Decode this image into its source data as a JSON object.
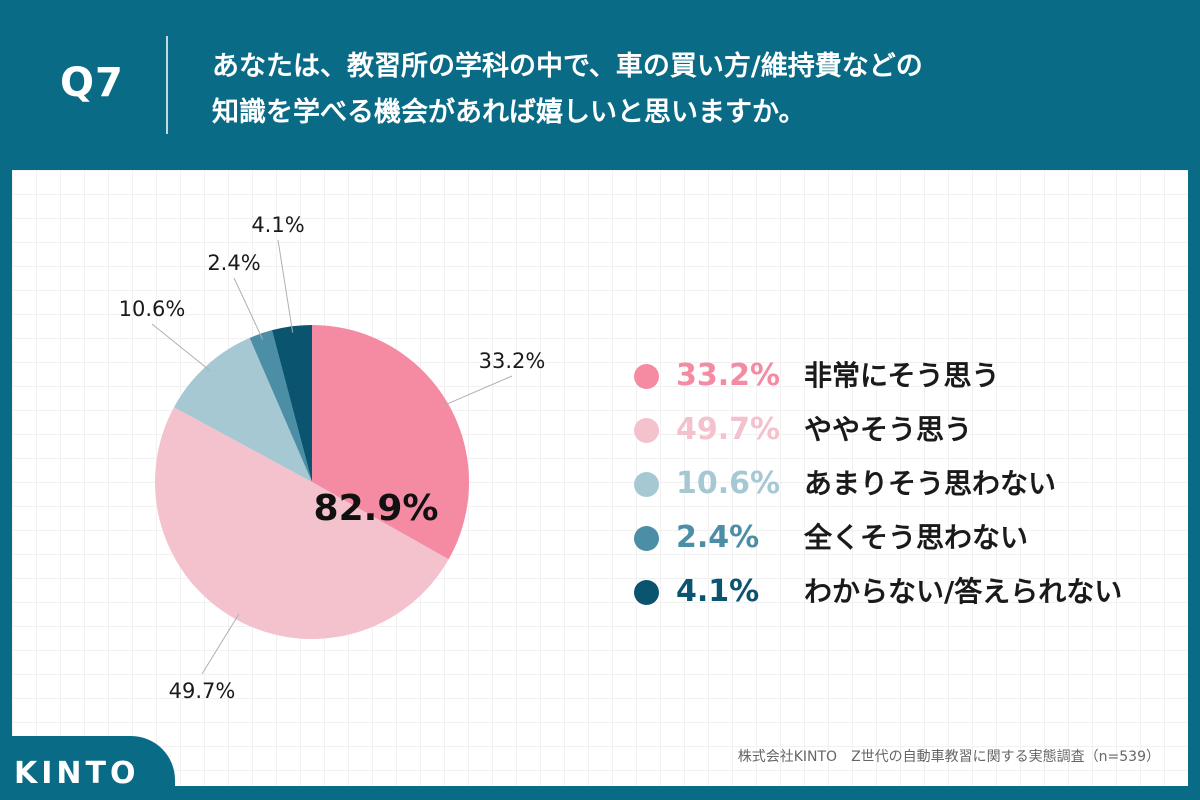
{
  "header": {
    "question_label": "Q7",
    "title_line1": "あなたは、教習所の学科の中で、車の買い方/維持費などの",
    "title_line2": "知識を学べる機会があれば嬉しいと思いますか。"
  },
  "chart_data": {
    "type": "pie",
    "title": "あなたは、教習所の学科の中で、車の買い方/維持費などの知識を学べる機会があれば嬉しいと思いますか。",
    "center_label": "82.9%",
    "slices": [
      {
        "label": "非常にそう思う",
        "value": 33.2,
        "value_label": "33.2%",
        "color": "#f48ba3"
      },
      {
        "label": "ややそう思う",
        "value": 49.7,
        "value_label": "49.7%",
        "color": "#f4c2cc"
      },
      {
        "label": "あまりそう思わない",
        "value": 10.6,
        "value_label": "10.6%",
        "color": "#a6c8d3"
      },
      {
        "label": "全くそう思わない",
        "value": 2.4,
        "value_label": "2.4%",
        "color": "#4b8ea6"
      },
      {
        "label": "わからない/答えられない",
        "value": 4.1,
        "value_label": "4.1%",
        "color": "#0a5470"
      }
    ],
    "legend_placement": "right"
  },
  "footer": {
    "source": "株式会社KINTO　Z世代の自動車教習に関する実態調査（n=539）",
    "logo": "KINTO"
  }
}
